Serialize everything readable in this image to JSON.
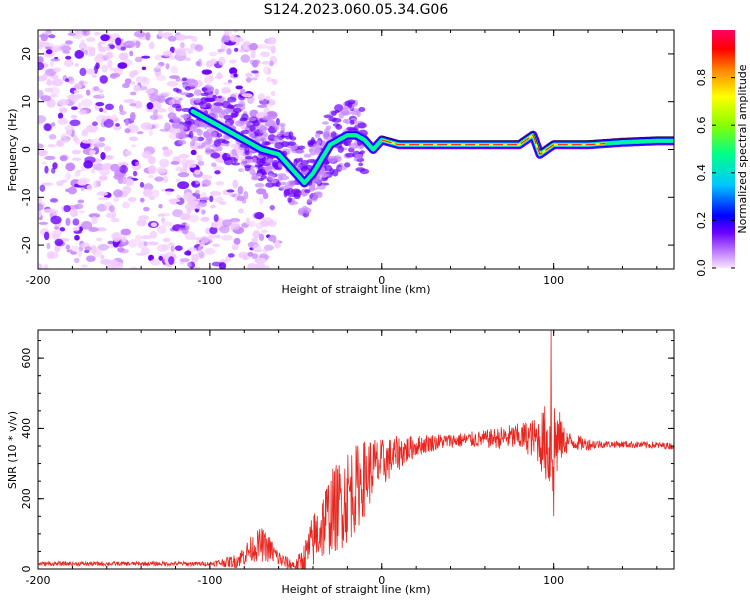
{
  "title": "S124.2023.060.05.34.G06",
  "chart_data": [
    {
      "type": "heatmap",
      "xlabel": "Height of straight line (km)",
      "ylabel": "Frequency (Hz)",
      "xlim": [
        -200,
        170
      ],
      "ylim": [
        -25,
        25
      ],
      "xticks": [
        -200,
        -100,
        0,
        100
      ],
      "yticks": [
        -20,
        -10,
        0,
        10,
        20
      ],
      "colorbar": {
        "label": "Normalized spectral amplitude",
        "range": [
          0,
          1
        ],
        "ticks": [
          "0.0",
          "0.2",
          "0.4",
          "0.6",
          "0.8"
        ],
        "colormap": [
          "#f2ccff",
          "#c88aff",
          "#6a00ff",
          "#0000ff",
          "#00c8ff",
          "#00ff88",
          "#88ff00",
          "#ffff00",
          "#ff8800",
          "#ff0000",
          "#ff0066"
        ]
      },
      "ridge": {
        "x": [
          -110,
          -100,
          -90,
          -80,
          -70,
          -60,
          -50,
          -45,
          -40,
          -35,
          -30,
          -25,
          -20,
          -15,
          -10,
          -5,
          0,
          10,
          20,
          40,
          60,
          80,
          88,
          92,
          100,
          120,
          140,
          160,
          170
        ],
        "y": [
          8,
          6,
          4,
          2,
          0,
          -1,
          -5,
          -7,
          -5,
          -2,
          1,
          2,
          3,
          3,
          2,
          0,
          2,
          1,
          1,
          1,
          1,
          1,
          3,
          -1,
          1,
          1,
          1.5,
          1.8,
          1.8
        ]
      },
      "grid": false
    },
    {
      "type": "line",
      "xlabel": "Height of straight line (km)",
      "ylabel": "SNR (10 * v/v)",
      "xlim": [
        -200,
        170
      ],
      "ylim": [
        0,
        680
      ],
      "xticks": [
        -200,
        -100,
        0,
        100
      ],
      "yticks": [
        0,
        200,
        400,
        600
      ],
      "series_color": "#e8251e",
      "envelope": {
        "x": [
          -200,
          -150,
          -100,
          -85,
          -80,
          -75,
          -70,
          -65,
          -60,
          -55,
          -50,
          -45,
          -40,
          -35,
          -30,
          -25,
          -20,
          -15,
          -10,
          -5,
          0,
          10,
          20,
          30,
          40,
          60,
          75,
          85,
          90,
          95,
          98,
          100,
          102,
          105,
          120,
          140,
          160,
          170
        ],
        "y": [
          15,
          15,
          15,
          22,
          40,
          60,
          70,
          55,
          30,
          15,
          10,
          30,
          80,
          120,
          160,
          180,
          210,
          230,
          260,
          290,
          300,
          330,
          350,
          360,
          365,
          370,
          375,
          375,
          370,
          360,
          340,
          350,
          370,
          365,
          355,
          355,
          352,
          350
        ]
      },
      "noise_amplitude": {
        "x": [
          -200,
          -100,
          -85,
          -70,
          -60,
          -50,
          -40,
          -30,
          -20,
          -10,
          0,
          20,
          40,
          60,
          80,
          90,
          95,
          100,
          105,
          110,
          130,
          170
        ],
        "y": [
          6,
          6,
          20,
          50,
          25,
          15,
          80,
          120,
          140,
          110,
          70,
          30,
          20,
          25,
          40,
          60,
          110,
          160,
          50,
          25,
          10,
          10
        ]
      },
      "spike": {
        "x": 98.5,
        "y": 680
      },
      "dip": {
        "x": 100,
        "y": 150
      },
      "grid": false
    }
  ]
}
